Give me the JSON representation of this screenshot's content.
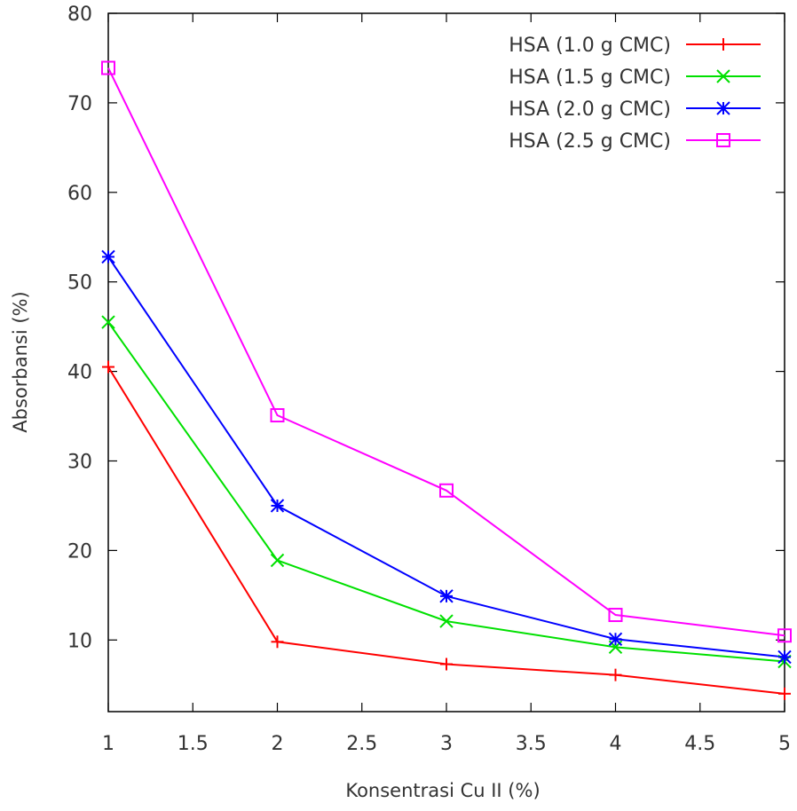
{
  "chart_data": {
    "type": "line",
    "title": "",
    "xlabel": "Konsentrasi Cu II (%)",
    "ylabel": "Absorbansi (%)",
    "xlim": [
      1,
      5
    ],
    "ylim": [
      2,
      80
    ],
    "x_ticks": [
      "1",
      "1.5",
      "2",
      "2.5",
      "3",
      "3.5",
      "4",
      "4.5",
      "5"
    ],
    "y_ticks": [
      "10",
      "20",
      "30",
      "40",
      "50",
      "60",
      "70",
      "80"
    ],
    "grid": false,
    "legend_position": "top-right",
    "x": [
      1,
      2,
      3,
      4,
      5
    ],
    "series": [
      {
        "name": "HSA (1.0 g CMC)",
        "color": "#ff0000",
        "marker": "plus",
        "values": [
          40.5,
          9.8,
          7.3,
          6.1,
          4.0
        ]
      },
      {
        "name": "HSA (1.5 g CMC)",
        "color": "#00e000",
        "marker": "cross",
        "values": [
          45.5,
          18.9,
          12.1,
          9.2,
          7.6
        ]
      },
      {
        "name": "HSA (2.0 g CMC)",
        "color": "#0000ff",
        "marker": "star",
        "values": [
          52.8,
          25.0,
          14.9,
          10.1,
          8.1
        ]
      },
      {
        "name": "HSA (2.5 g CMC)",
        "color": "#ff00ff",
        "marker": "square",
        "values": [
          73.9,
          35.1,
          26.7,
          12.8,
          10.5
        ]
      }
    ]
  }
}
